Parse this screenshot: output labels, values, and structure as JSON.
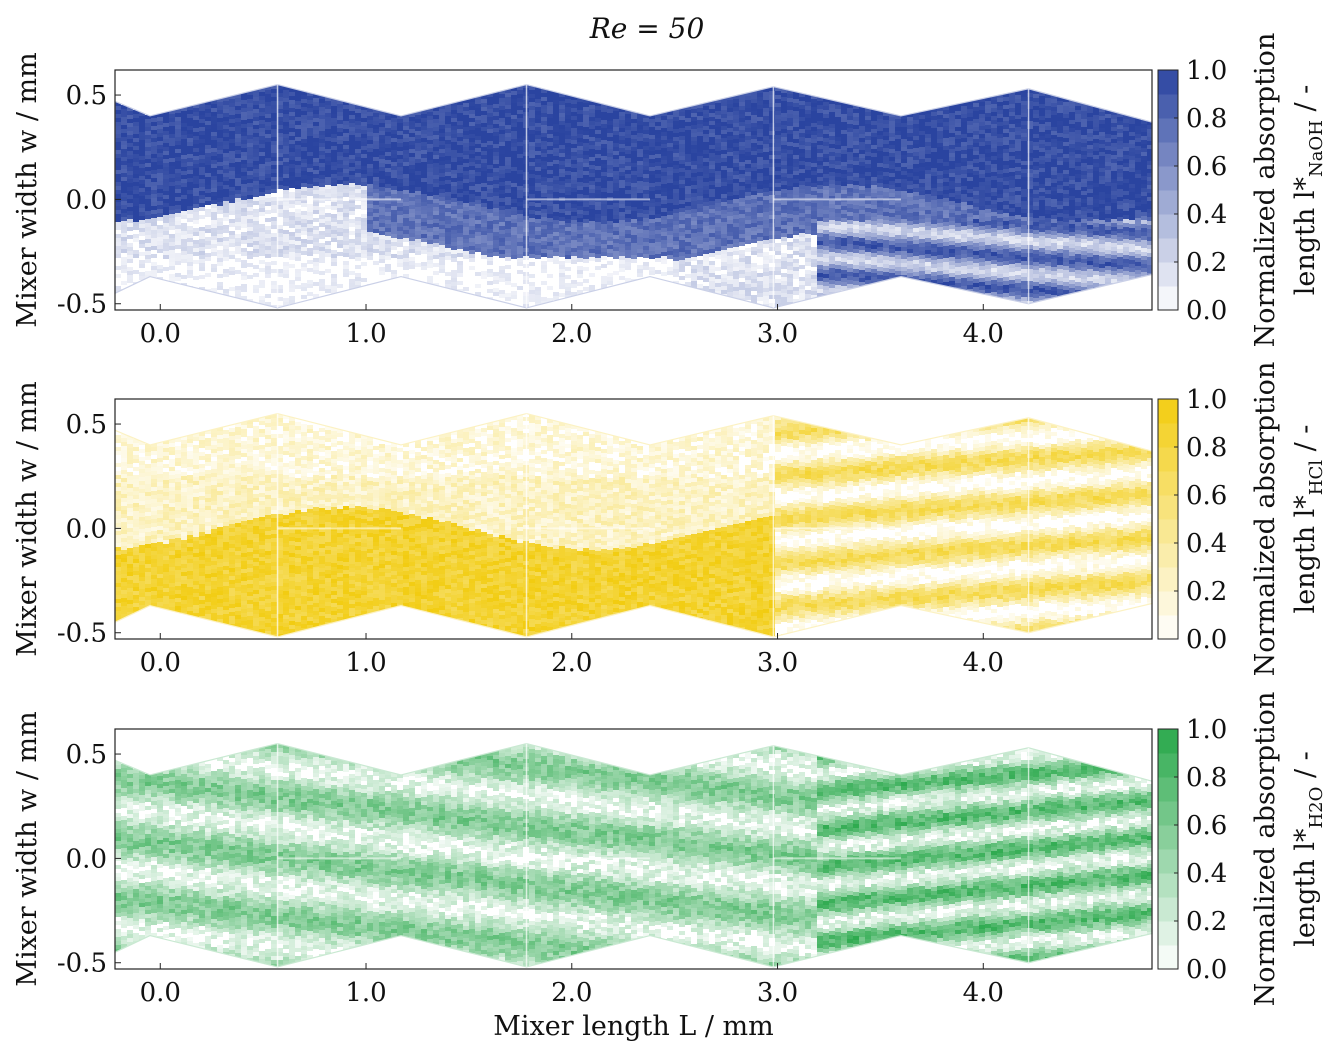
{
  "title": "Re = 50",
  "colors": {
    "naoh": "#2a44a0",
    "hcl": "#f2cc10",
    "h2o": "#28a84a",
    "frame": "#222222"
  },
  "chart_data": [
    {
      "type": "heatmap",
      "name": "NaOH",
      "xlabel": "",
      "ylabel": "Mixer width w / mm",
      "xticks": [
        "0.0",
        "1.0",
        "2.0",
        "3.0",
        "4.0"
      ],
      "xtick_values": [
        0.0,
        1.0,
        2.0,
        3.0,
        4.0
      ],
      "yticks": [
        "0.5",
        "0.0",
        "-0.5"
      ],
      "ytick_values": [
        0.5,
        0.0,
        -0.5
      ],
      "xlim": [
        -0.22,
        4.82
      ],
      "ylim": [
        -0.53,
        0.62
      ],
      "colorbar_label_line1": "Normalized absorption",
      "colorbar_label_line2": "length l*",
      "colorbar_subscript": "NaOH",
      "colorbar_suffix": " / -",
      "colorbar_ticks": [
        "1.0",
        "0.8",
        "0.6",
        "0.4",
        "0.2",
        "0.0"
      ],
      "colorbar_range": [
        0.0,
        1.0
      ],
      "colormap_color": "#2a44a0"
    },
    {
      "type": "heatmap",
      "name": "HCl",
      "xlabel": "",
      "ylabel": "Mixer width w / mm",
      "xticks": [
        "0.0",
        "1.0",
        "2.0",
        "3.0",
        "4.0"
      ],
      "xtick_values": [
        0.0,
        1.0,
        2.0,
        3.0,
        4.0
      ],
      "yticks": [
        "0.5",
        "0.0",
        "-0.5"
      ],
      "ytick_values": [
        0.5,
        0.0,
        -0.5
      ],
      "xlim": [
        -0.22,
        4.82
      ],
      "ylim": [
        -0.53,
        0.62
      ],
      "colorbar_label_line1": "Normalized absorption",
      "colorbar_label_line2": "length l*",
      "colorbar_subscript": "HCl",
      "colorbar_suffix": " / -",
      "colorbar_ticks": [
        "1.0",
        "0.8",
        "0.6",
        "0.4",
        "0.2",
        "0.0"
      ],
      "colorbar_range": [
        0.0,
        1.0
      ],
      "colormap_color": "#f2cc10"
    },
    {
      "type": "heatmap",
      "name": "H2O",
      "xlabel": "Mixer length L / mm",
      "ylabel": "Mixer width w / mm",
      "xticks": [
        "0.0",
        "1.0",
        "2.0",
        "3.0",
        "4.0"
      ],
      "xtick_values": [
        0.0,
        1.0,
        2.0,
        3.0,
        4.0
      ],
      "yticks": [
        "0.5",
        "0.0",
        "-0.5"
      ],
      "ytick_values": [
        0.5,
        0.0,
        -0.5
      ],
      "xlim": [
        -0.22,
        4.82
      ],
      "ylim": [
        -0.53,
        0.62
      ],
      "colorbar_label_line1": "Normalized absorption",
      "colorbar_label_line2": "length l*",
      "colorbar_subscript": "H2O",
      "colorbar_suffix": " / -",
      "colorbar_ticks": [
        "1.0",
        "0.8",
        "0.6",
        "0.4",
        "0.2",
        "0.0"
      ],
      "colorbar_range": [
        0.0,
        1.0
      ],
      "colormap_color": "#28a84a"
    }
  ]
}
